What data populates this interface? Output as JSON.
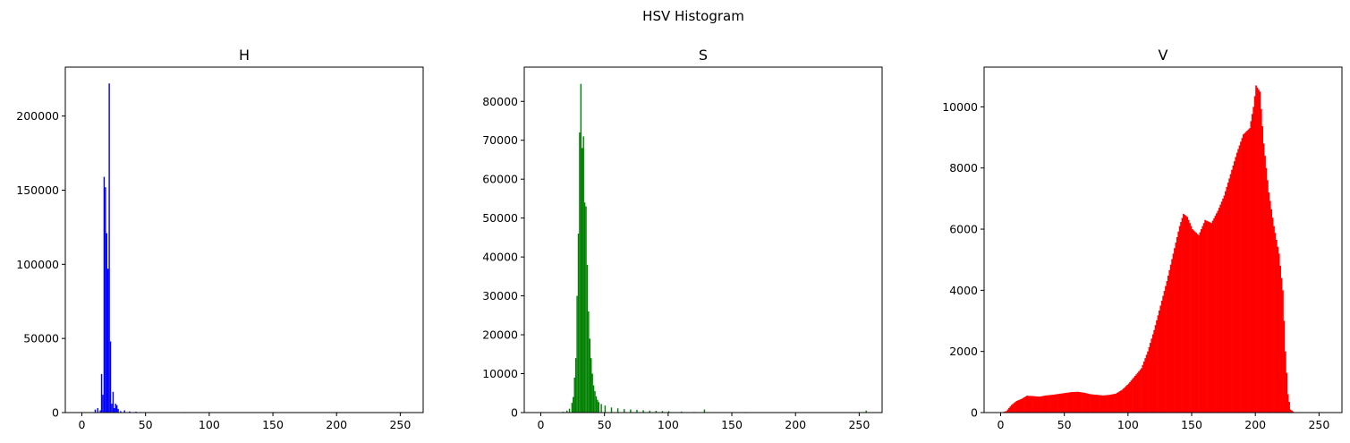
{
  "figure": {
    "title": "HSV Histogram"
  },
  "chart_data": [
    {
      "type": "bar",
      "title": "H",
      "color": "#0000ff",
      "xlim": [
        -13,
        268
      ],
      "ylim": [
        0,
        233000
      ],
      "x_ticks": [
        0,
        50,
        100,
        150,
        200,
        250
      ],
      "y_ticks": [
        0,
        50000,
        100000,
        150000,
        200000
      ],
      "bins": [
        [
          10,
          2000
        ],
        [
          12,
          3000
        ],
        [
          14,
          1500
        ],
        [
          15,
          26000
        ],
        [
          16,
          12000
        ],
        [
          17,
          159000
        ],
        [
          18,
          152000
        ],
        [
          19,
          121000
        ],
        [
          20,
          97000
        ],
        [
          21,
          222000
        ],
        [
          22,
          48000
        ],
        [
          23,
          6000
        ],
        [
          24,
          14000
        ],
        [
          25,
          3000
        ],
        [
          26,
          6000
        ],
        [
          27,
          5000
        ],
        [
          28,
          2500
        ],
        [
          30,
          1000
        ],
        [
          33,
          1500
        ],
        [
          37,
          800
        ],
        [
          42,
          600
        ],
        [
          50,
          300
        ],
        [
          60,
          200
        ],
        [
          80,
          150
        ],
        [
          100,
          120
        ],
        [
          150,
          80
        ],
        [
          200,
          60
        ],
        [
          250,
          40
        ]
      ]
    },
    {
      "type": "bar",
      "title": "S",
      "color": "#008000",
      "xlim": [
        -13,
        268
      ],
      "ylim": [
        0,
        88800
      ],
      "x_ticks": [
        0,
        50,
        100,
        150,
        200,
        250
      ],
      "y_ticks": [
        0,
        10000,
        20000,
        30000,
        40000,
        50000,
        60000,
        70000,
        80000
      ],
      "bins": [
        [
          17,
          200
        ],
        [
          20,
          500
        ],
        [
          22,
          1000
        ],
        [
          24,
          2500
        ],
        [
          25,
          4000
        ],
        [
          26,
          9000
        ],
        [
          27,
          14000
        ],
        [
          28,
          30000
        ],
        [
          29,
          46000
        ],
        [
          30,
          72000
        ],
        [
          31,
          84500
        ],
        [
          32,
          68000
        ],
        [
          33,
          71000
        ],
        [
          34,
          54000
        ],
        [
          35,
          53000
        ],
        [
          36,
          38000
        ],
        [
          37,
          26000
        ],
        [
          38,
          19000
        ],
        [
          39,
          14000
        ],
        [
          40,
          10000
        ],
        [
          41,
          7000
        ],
        [
          42,
          5500
        ],
        [
          43,
          4200
        ],
        [
          44,
          3300
        ],
        [
          45,
          2700
        ],
        [
          47,
          2200
        ],
        [
          50,
          1800
        ],
        [
          55,
          1300
        ],
        [
          60,
          1100
        ],
        [
          65,
          900
        ],
        [
          70,
          800
        ],
        [
          75,
          700
        ],
        [
          80,
          600
        ],
        [
          85,
          500
        ],
        [
          90,
          450
        ],
        [
          95,
          400
        ],
        [
          100,
          350
        ],
        [
          110,
          250
        ],
        [
          120,
          150
        ],
        [
          128,
          800
        ],
        [
          140,
          80
        ],
        [
          160,
          50
        ],
        [
          200,
          40
        ],
        [
          255,
          500
        ]
      ]
    },
    {
      "type": "bar",
      "title": "V",
      "color": "#ff0000",
      "xlim": [
        -13,
        268
      ],
      "ylim": [
        0,
        11300
      ],
      "x_ticks": [
        0,
        50,
        100,
        150,
        200,
        250
      ],
      "y_ticks": [
        0,
        2000,
        4000,
        6000,
        8000,
        10000
      ],
      "bins": [
        [
          0,
          0
        ],
        [
          4,
          50
        ],
        [
          8,
          250
        ],
        [
          12,
          380
        ],
        [
          16,
          450
        ],
        [
          20,
          550
        ],
        [
          25,
          540
        ],
        [
          30,
          520
        ],
        [
          35,
          560
        ],
        [
          40,
          580
        ],
        [
          45,
          610
        ],
        [
          50,
          640
        ],
        [
          55,
          670
        ],
        [
          60,
          680
        ],
        [
          65,
          650
        ],
        [
          70,
          600
        ],
        [
          75,
          580
        ],
        [
          80,
          560
        ],
        [
          85,
          580
        ],
        [
          90,
          620
        ],
        [
          95,
          750
        ],
        [
          100,
          950
        ],
        [
          105,
          1200
        ],
        [
          110,
          1450
        ],
        [
          115,
          2000
        ],
        [
          120,
          2700
        ],
        [
          125,
          3500
        ],
        [
          130,
          4300
        ],
        [
          135,
          5200
        ],
        [
          140,
          6100
        ],
        [
          143,
          6500
        ],
        [
          146,
          6400
        ],
        [
          150,
          6000
        ],
        [
          155,
          5800
        ],
        [
          160,
          6300
        ],
        [
          165,
          6200
        ],
        [
          170,
          6600
        ],
        [
          175,
          7100
        ],
        [
          180,
          7800
        ],
        [
          185,
          8500
        ],
        [
          190,
          9100
        ],
        [
          195,
          9300
        ],
        [
          198,
          10000
        ],
        [
          200,
          10700
        ],
        [
          203,
          10500
        ],
        [
          206,
          8800
        ],
        [
          210,
          7200
        ],
        [
          214,
          6100
        ],
        [
          218,
          5200
        ],
        [
          221,
          4000
        ],
        [
          223,
          2000
        ],
        [
          225,
          600
        ],
        [
          227,
          100
        ],
        [
          230,
          0
        ]
      ]
    }
  ]
}
